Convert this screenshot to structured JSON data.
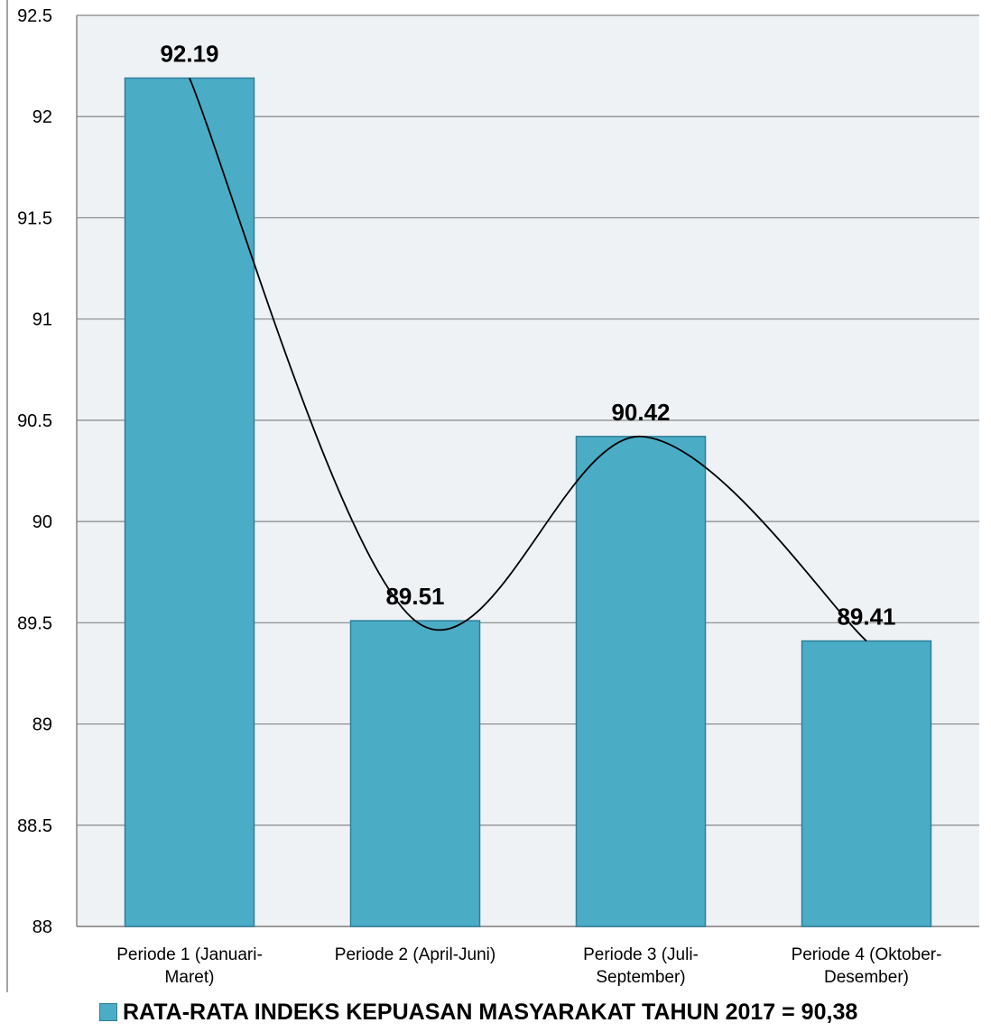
{
  "chart_data": {
    "type": "bar",
    "categories": [
      [
        "Periode 1 (Januari-",
        "Maret)"
      ],
      [
        "Periode 2 (April-Juni)"
      ],
      [
        "Periode 3 (Juli-",
        "September)"
      ],
      [
        "Periode 4 (Oktober-",
        "Desember)"
      ]
    ],
    "series": [
      {
        "name": "RATA-RATA INDEKS KEPUASAN MASYARAKAT TAHUN 2017 = 90,38",
        "values": [
          92.19,
          89.51,
          90.42,
          89.41
        ],
        "data_labels": [
          "92.19",
          "89.51",
          "90.42",
          "89.41"
        ]
      }
    ],
    "ylim": [
      88,
      92.5
    ],
    "yticks": [
      "88",
      "88.5",
      "89",
      "89.5",
      "90",
      "90.5",
      "91",
      "91.5",
      "92",
      "92.5"
    ],
    "grid": true,
    "trendline": "smoothed line through bar values",
    "legend_position": "bottom",
    "colors": {
      "bar_fill": "#4bacc6",
      "bar_stroke": "#2f7f9a",
      "plot_background": "#eef2f5",
      "gridline": "#868686",
      "trendline": "#000000"
    }
  }
}
